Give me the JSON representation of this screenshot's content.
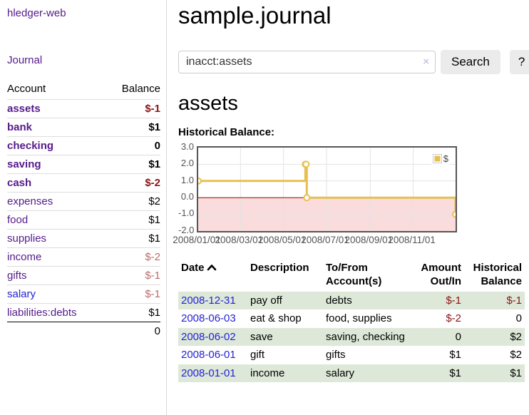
{
  "sidebar": {
    "app_title": "hledger-web",
    "journal_label": "Journal",
    "accounts": {
      "header_account": "Account",
      "header_balance": "Balance",
      "rows": [
        {
          "account": "assets",
          "balance": "$-1",
          "indent": 1,
          "bold": true,
          "link": "purple",
          "balance_class": "neg"
        },
        {
          "account": "bank",
          "balance": "$1",
          "indent": 2,
          "bold": true,
          "link": "purple",
          "balance_class": ""
        },
        {
          "account": "checking",
          "balance": "0",
          "indent": 3,
          "bold": true,
          "link": "purple",
          "balance_class": ""
        },
        {
          "account": "saving",
          "balance": "$1",
          "indent": 3,
          "bold": true,
          "link": "purple",
          "balance_class": ""
        },
        {
          "account": "cash",
          "balance": "$-2",
          "indent": 2,
          "bold": true,
          "link": "purple",
          "balance_class": "neg"
        },
        {
          "account": "expenses",
          "balance": "$2",
          "indent": 1,
          "bold": false,
          "link": "purple",
          "balance_class": ""
        },
        {
          "account": "food",
          "balance": "$1",
          "indent": 2,
          "bold": false,
          "link": "purple",
          "balance_class": ""
        },
        {
          "account": "supplies",
          "balance": "$1",
          "indent": 2,
          "bold": false,
          "link": "purple",
          "balance_class": ""
        },
        {
          "account": "income",
          "balance": "$-2",
          "indent": 1,
          "bold": false,
          "link": "purple",
          "balance_class": "dimneg"
        },
        {
          "account": "gifts",
          "balance": "$-1",
          "indent": 2,
          "bold": false,
          "link": "purple",
          "balance_class": "dimneg"
        },
        {
          "account": "salary",
          "balance": "$-1",
          "indent": 2,
          "bold": false,
          "link": "blue",
          "balance_class": "dimneg"
        },
        {
          "account": "liabilities:debts",
          "balance": "$1",
          "indent": 1,
          "bold": false,
          "link": "purple",
          "balance_class": ""
        }
      ],
      "total": "0"
    }
  },
  "main": {
    "title": "sample.journal",
    "search": {
      "value": "inacct:assets",
      "clear_icon": "×",
      "button_label": "Search",
      "help_label": "?"
    },
    "account_heading": "assets"
  },
  "chart_data": {
    "type": "line",
    "title": "Historical Balance:",
    "series": [
      {
        "name": "$",
        "color": "#e6c050",
        "step": true,
        "points": [
          [
            "2008-01-01",
            1
          ],
          [
            "2008-06-01",
            2
          ],
          [
            "2008-06-02",
            2
          ],
          [
            "2008-06-03",
            0
          ],
          [
            "2008-12-31",
            -1
          ]
        ]
      }
    ],
    "x": {
      "min": "2008-01-01",
      "max": "2008-12-31",
      "tick_labels": [
        "2008/01/01",
        "2008/03/01",
        "2008/05/01",
        "2008/07/01",
        "2008/09/01",
        "2008/11/01"
      ],
      "tick_dates": [
        "2008-01-01",
        "2008-03-01",
        "2008-05-01",
        "2008-07-01",
        "2008-09-01",
        "2008-11-01"
      ]
    },
    "y": {
      "min": -2,
      "max": 3,
      "ticks": [
        "3.0",
        "2.0",
        "1.0",
        "0.0",
        "-1.0",
        "-2.0"
      ]
    },
    "legend": {
      "label": "$",
      "position": "top-right"
    },
    "negative_region": {
      "below": 0,
      "fill": "#fadcdc",
      "line_color": "#9b0000"
    },
    "grid": true,
    "grid_color": "#e3e3e3"
  },
  "register": {
    "headers": [
      {
        "label": "Date",
        "sortable": true,
        "sort_direction": "ascending"
      },
      {
        "label": "Description"
      },
      {
        "label": "To/From Account(s)"
      },
      {
        "label": "Amount Out/In"
      },
      {
        "label": "Historical Balance"
      }
    ],
    "rows": [
      {
        "date": "2008-12-31",
        "description": "pay off",
        "accounts": "debts",
        "amount": "$-1",
        "amount_negative": true,
        "balance": "$-1",
        "balance_negative": true
      },
      {
        "date": "2008-06-03",
        "description": "eat & shop",
        "accounts": "food, supplies",
        "amount": "$-2",
        "amount_negative": true,
        "balance": "0",
        "balance_negative": false
      },
      {
        "date": "2008-06-02",
        "description": "save",
        "accounts": "saving, checking",
        "amount": "0",
        "amount_negative": false,
        "balance": "$2",
        "balance_negative": false
      },
      {
        "date": "2008-06-01",
        "description": "gift",
        "accounts": "gifts",
        "amount": "$1",
        "amount_negative": false,
        "balance": "$2",
        "balance_negative": false
      },
      {
        "date": "2008-01-01",
        "description": "income",
        "accounts": "salary",
        "amount": "$1",
        "amount_negative": false,
        "balance": "$1",
        "balance_negative": false
      }
    ]
  },
  "colors": {
    "link_purple": "#551A8B",
    "link_blue": "#2323d6",
    "negative_strong": "#8b1515",
    "negative_dim": "#bd6b6b",
    "row_highlight_green": "#dde8d8",
    "chart_series_yellow": "#e6c050",
    "chart_negative_fill": "#fadcdc",
    "chart_zero_line": "#9b0000"
  }
}
